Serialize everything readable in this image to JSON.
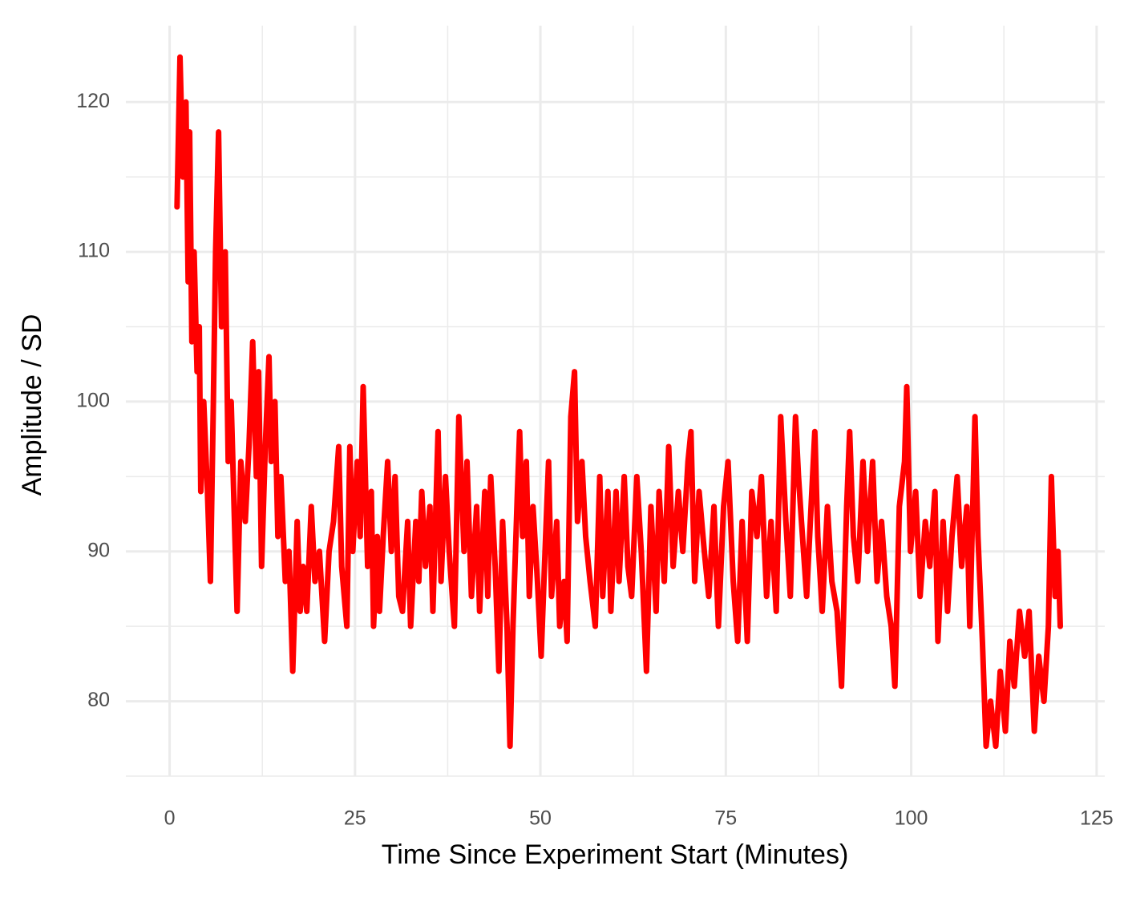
{
  "chart_data": {
    "type": "line",
    "x_label": "Time Since Experiment Start (Minutes)",
    "y_label": "Amplitude / SD",
    "x": [
      1.0,
      1.4,
      1.8,
      2.2,
      2.5,
      2.7,
      3.0,
      3.3,
      3.7,
      4.0,
      4.2,
      4.6,
      5.1,
      5.5,
      5.9,
      6.2,
      6.6,
      7.0,
      7.5,
      7.9,
      8.3,
      8.8,
      9.1,
      9.6,
      10.2,
      10.7,
      11.2,
      11.7,
      12.0,
      12.4,
      12.9,
      13.4,
      13.7,
      14.2,
      14.6,
      15.0,
      15.6,
      16.1,
      16.6,
      17.2,
      17.6,
      18.0,
      18.5,
      19.1,
      19.6,
      20.2,
      20.9,
      21.5,
      22.1,
      22.8,
      23.2,
      23.9,
      24.3,
      24.7,
      25.3,
      25.7,
      26.1,
      26.7,
      27.2,
      27.5,
      28.0,
      28.3,
      28.8,
      29.4,
      29.9,
      30.4,
      30.9,
      31.4,
      32.1,
      32.5,
      33.2,
      33.6,
      34.0,
      34.5,
      35.1,
      35.5,
      36.2,
      36.6,
      37.2,
      37.7,
      38.4,
      39.0,
      39.7,
      40.1,
      40.7,
      41.4,
      41.8,
      42.5,
      42.9,
      43.3,
      43.9,
      44.4,
      44.9,
      45.5,
      45.9,
      46.3,
      46.9,
      47.2,
      47.6,
      48.1,
      48.5,
      49.0,
      49.6,
      50.1,
      50.7,
      51.1,
      51.5,
      52.2,
      52.6,
      53.2,
      53.6,
      54.1,
      54.6,
      55.0,
      55.6,
      56.1,
      56.7,
      57.4,
      58.0,
      58.4,
      59.1,
      59.5,
      60.2,
      60.6,
      61.3,
      61.8,
      62.3,
      63.0,
      63.6,
      64.3,
      64.9,
      65.6,
      66.0,
      66.7,
      67.3,
      67.9,
      68.6,
      69.2,
      69.9,
      70.3,
      70.8,
      71.4,
      72.1,
      72.7,
      73.4,
      74.0,
      74.7,
      75.3,
      76.0,
      76.6,
      77.2,
      77.9,
      78.5,
      79.2,
      79.8,
      80.5,
      81.1,
      81.8,
      82.4,
      83.1,
      83.7,
      84.4,
      84.8,
      85.2,
      85.9,
      86.5,
      87.0,
      87.4,
      88.0,
      88.7,
      89.3,
      90.0,
      90.6,
      91.3,
      91.7,
      92.2,
      92.8,
      93.5,
      94.1,
      94.8,
      95.4,
      96.0,
      96.7,
      97.3,
      97.8,
      98.4,
      99.1,
      99.4,
      99.9,
      100.6,
      101.2,
      101.9,
      102.5,
      103.2,
      103.6,
      104.3,
      104.9,
      105.5,
      106.2,
      106.8,
      107.5,
      107.9,
      108.6,
      109.0,
      109.6,
      110.1,
      110.7,
      111.4,
      112.0,
      112.7,
      113.3,
      113.9,
      114.6,
      115.3,
      115.9,
      116.6,
      117.2,
      117.9,
      118.5,
      118.9,
      119.4,
      119.8,
      120.1
    ],
    "series": [
      {
        "color": "#ff0000",
        "values": [
          113,
          123,
          115,
          120,
          108,
          118,
          104,
          110,
          102,
          105,
          94,
          100,
          94,
          88,
          100,
          110,
          118,
          105,
          110,
          96,
          100,
          91,
          86,
          96,
          92,
          97,
          104,
          95,
          102,
          89,
          97,
          103,
          96,
          100,
          91,
          95,
          88,
          90,
          82,
          92,
          86,
          89,
          86,
          93,
          88,
          90,
          84,
          90,
          92,
          97,
          89,
          85,
          97,
          90,
          96,
          91,
          101,
          89,
          94,
          85,
          91,
          86,
          91,
          96,
          90,
          95,
          87,
          86,
          92,
          85,
          92,
          88,
          94,
          89,
          93,
          86,
          98,
          88,
          95,
          90,
          85,
          99,
          90,
          96,
          87,
          93,
          86,
          94,
          87,
          95,
          89,
          82,
          92,
          85,
          77,
          85,
          94,
          98,
          91,
          96,
          87,
          93,
          88,
          83,
          91,
          96,
          87,
          92,
          85,
          88,
          84,
          99,
          102,
          92,
          96,
          91,
          88,
          85,
          95,
          87,
          94,
          86,
          94,
          88,
          95,
          89,
          87,
          95,
          90,
          82,
          93,
          86,
          94,
          88,
          97,
          89,
          94,
          90,
          96,
          98,
          88,
          94,
          90,
          87,
          93,
          85,
          93,
          96,
          88,
          84,
          92,
          84,
          94,
          91,
          95,
          87,
          92,
          86,
          99,
          92,
          87,
          99,
          95,
          92,
          87,
          93,
          98,
          91,
          86,
          93,
          88,
          86,
          81,
          93,
          98,
          91,
          88,
          96,
          90,
          96,
          88,
          92,
          87,
          85,
          81,
          93,
          96,
          101,
          90,
          94,
          87,
          92,
          89,
          94,
          84,
          92,
          86,
          91,
          95,
          89,
          93,
          85,
          99,
          91,
          84,
          77,
          80,
          77,
          82,
          78,
          84,
          81,
          86,
          83,
          86,
          78,
          83,
          80,
          85,
          95,
          87,
          90,
          85
        ]
      }
    ],
    "xlim": [
      -5.9,
      126.1
    ],
    "ylim": [
      75.0,
      125.1
    ],
    "xticks": [
      0,
      25,
      50,
      75,
      100,
      125
    ],
    "yticks": [
      80,
      90,
      100,
      110,
      120
    ],
    "xminor": [
      12.5,
      37.5,
      62.5,
      87.5,
      112.5
    ],
    "yminor": [
      75,
      85,
      95,
      105,
      115
    ],
    "grid": true
  }
}
